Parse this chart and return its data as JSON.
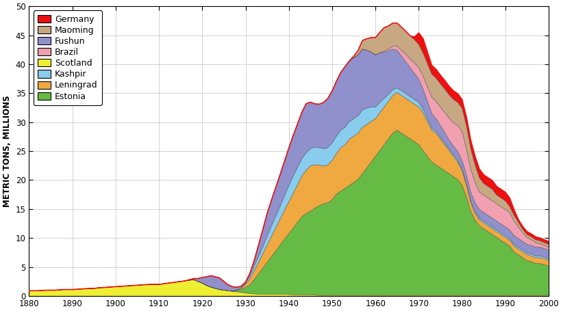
{
  "title": "",
  "ylabel": "METRIC TONS, MILLIONS",
  "xlabel": "",
  "xlim": [
    1880,
    2000
  ],
  "ylim": [
    0,
    50
  ],
  "yticks": [
    0,
    5,
    10,
    15,
    20,
    25,
    30,
    35,
    40,
    45,
    50
  ],
  "xticks": [
    1880,
    1890,
    1900,
    1910,
    1920,
    1930,
    1940,
    1950,
    1960,
    1970,
    1980,
    1990,
    2000
  ],
  "legend_order": [
    "Germany",
    "Maoming",
    "Fushun",
    "Brazil",
    "Scotland",
    "Kashpir",
    "Leningrad",
    "Estonia"
  ],
  "colors": {
    "Germany": "#ee1111",
    "Maoming": "#c8a882",
    "Fushun": "#9090cc",
    "Brazil": "#f0a0b0",
    "Scotland": "#eeee33",
    "Kashpir": "#88ccee",
    "Leningrad": "#f0a840",
    "Estonia": "#66bb44"
  },
  "stack_order": [
    "Scotland",
    "Estonia",
    "Leningrad",
    "Kashpir",
    "Fushun",
    "Brazil",
    "Maoming",
    "Germany"
  ],
  "years": [
    1880,
    1881,
    1882,
    1883,
    1884,
    1885,
    1886,
    1887,
    1888,
    1889,
    1890,
    1891,
    1892,
    1893,
    1894,
    1895,
    1896,
    1897,
    1898,
    1899,
    1900,
    1901,
    1902,
    1903,
    1904,
    1905,
    1906,
    1907,
    1908,
    1909,
    1910,
    1911,
    1912,
    1913,
    1914,
    1915,
    1916,
    1917,
    1918,
    1919,
    1920,
    1921,
    1922,
    1923,
    1924,
    1925,
    1926,
    1927,
    1928,
    1929,
    1930,
    1931,
    1932,
    1933,
    1934,
    1935,
    1936,
    1937,
    1938,
    1939,
    1940,
    1941,
    1942,
    1943,
    1944,
    1945,
    1946,
    1947,
    1948,
    1949,
    1950,
    1951,
    1952,
    1953,
    1954,
    1955,
    1956,
    1957,
    1958,
    1959,
    1960,
    1961,
    1962,
    1963,
    1964,
    1965,
    1966,
    1967,
    1968,
    1969,
    1970,
    1971,
    1972,
    1973,
    1974,
    1975,
    1976,
    1977,
    1978,
    1979,
    1980,
    1981,
    1982,
    1983,
    1984,
    1985,
    1986,
    1987,
    1988,
    1989,
    1990,
    1991,
    1992,
    1993,
    1994,
    1995,
    1996,
    1997,
    1998,
    1999,
    2000
  ],
  "data": {
    "Scotland": [
      0.9,
      0.9,
      0.9,
      0.95,
      1.0,
      1.0,
      1.0,
      1.05,
      1.1,
      1.1,
      1.1,
      1.15,
      1.2,
      1.25,
      1.3,
      1.3,
      1.4,
      1.45,
      1.5,
      1.55,
      1.6,
      1.65,
      1.7,
      1.75,
      1.8,
      1.85,
      1.9,
      1.95,
      2.0,
      2.0,
      2.0,
      2.1,
      2.2,
      2.3,
      2.4,
      2.5,
      2.6,
      2.7,
      2.8,
      2.5,
      2.2,
      1.8,
      1.5,
      1.3,
      1.1,
      1.0,
      0.9,
      0.8,
      0.7,
      0.6,
      0.5,
      0.4,
      0.35,
      0.3,
      0.3,
      0.3,
      0.3,
      0.3,
      0.3,
      0.3,
      0.25,
      0.2,
      0.2,
      0.2,
      0.2,
      0.15,
      0.15,
      0.1,
      0.1,
      0.1,
      0.1,
      0.1,
      0.1,
      0.1,
      0.1,
      0.1,
      0.1,
      0.1,
      0.1,
      0.1,
      0.1,
      0.1,
      0.1,
      0.1,
      0.1,
      0.1,
      0.1,
      0.1,
      0.1,
      0.1,
      0.1,
      0.1,
      0.1,
      0.1,
      0.1,
      0.1,
      0.1,
      0.1,
      0.1,
      0.1,
      0.1,
      0.1,
      0.1,
      0.1,
      0.1,
      0.1,
      0.1,
      0.1,
      0.1,
      0.1,
      0.1,
      0.1,
      0.1,
      0.1,
      0.1,
      0.1,
      0.1,
      0.1,
      0.1,
      0.1,
      0.1
    ],
    "Estonia": [
      0.0,
      0.0,
      0.0,
      0.0,
      0.0,
      0.0,
      0.0,
      0.0,
      0.0,
      0.0,
      0.0,
      0.0,
      0.0,
      0.0,
      0.0,
      0.0,
      0.0,
      0.0,
      0.0,
      0.0,
      0.0,
      0.0,
      0.0,
      0.0,
      0.0,
      0.0,
      0.0,
      0.0,
      0.0,
      0.0,
      0.0,
      0.0,
      0.0,
      0.0,
      0.0,
      0.0,
      0.0,
      0.0,
      0.0,
      0.0,
      0.0,
      0.0,
      0.0,
      0.0,
      0.0,
      0.0,
      0.0,
      0.0,
      0.2,
      0.5,
      1.0,
      1.5,
      2.5,
      3.5,
      4.5,
      5.5,
      6.5,
      7.5,
      8.5,
      9.5,
      10.5,
      11.5,
      12.5,
      13.5,
      14.0,
      14.5,
      15.0,
      15.5,
      15.8,
      16.0,
      16.5,
      17.5,
      18.0,
      18.5,
      19.0,
      19.5,
      20.0,
      21.0,
      22.0,
      23.0,
      24.0,
      25.0,
      26.0,
      27.0,
      28.0,
      28.5,
      28.0,
      27.5,
      27.0,
      26.5,
      26.0,
      25.0,
      24.0,
      23.0,
      22.5,
      22.0,
      21.5,
      21.0,
      20.5,
      20.0,
      19.0,
      17.0,
      14.5,
      13.0,
      12.0,
      11.5,
      11.0,
      10.5,
      10.0,
      9.5,
      9.0,
      8.5,
      7.5,
      7.0,
      6.5,
      6.0,
      5.8,
      5.5,
      5.5,
      5.3,
      5.0
    ],
    "Leningrad": [
      0.0,
      0.0,
      0.0,
      0.0,
      0.0,
      0.0,
      0.0,
      0.0,
      0.0,
      0.0,
      0.0,
      0.0,
      0.0,
      0.0,
      0.0,
      0.0,
      0.0,
      0.0,
      0.0,
      0.0,
      0.0,
      0.0,
      0.0,
      0.0,
      0.0,
      0.0,
      0.0,
      0.0,
      0.0,
      0.0,
      0.0,
      0.0,
      0.0,
      0.0,
      0.0,
      0.0,
      0.0,
      0.0,
      0.0,
      0.0,
      0.0,
      0.0,
      0.0,
      0.0,
      0.0,
      0.0,
      0.0,
      0.0,
      0.1,
      0.2,
      0.5,
      1.0,
      1.5,
      2.0,
      2.5,
      3.0,
      3.5,
      4.0,
      4.5,
      5.0,
      5.5,
      6.0,
      6.5,
      7.0,
      7.5,
      7.8,
      7.5,
      7.0,
      6.5,
      6.5,
      6.8,
      7.0,
      7.5,
      7.5,
      8.0,
      8.0,
      8.0,
      8.0,
      7.5,
      7.0,
      6.5,
      6.5,
      6.5,
      6.5,
      6.5,
      6.5,
      6.5,
      6.5,
      6.5,
      6.5,
      6.5,
      6.5,
      6.0,
      5.5,
      5.5,
      5.0,
      4.5,
      4.0,
      3.5,
      3.0,
      2.5,
      2.0,
      1.5,
      1.2,
      1.0,
      1.0,
      1.0,
      1.0,
      1.0,
      1.0,
      1.0,
      1.0,
      1.0,
      1.0,
      1.0,
      1.0,
      1.0,
      1.0,
      1.0,
      1.0,
      1.0
    ],
    "Kashpir": [
      0.0,
      0.0,
      0.0,
      0.0,
      0.0,
      0.0,
      0.0,
      0.0,
      0.0,
      0.0,
      0.0,
      0.0,
      0.0,
      0.0,
      0.0,
      0.0,
      0.0,
      0.0,
      0.0,
      0.0,
      0.0,
      0.0,
      0.0,
      0.0,
      0.0,
      0.0,
      0.0,
      0.0,
      0.0,
      0.0,
      0.0,
      0.0,
      0.0,
      0.0,
      0.0,
      0.0,
      0.0,
      0.0,
      0.0,
      0.0,
      0.0,
      0.0,
      0.0,
      0.0,
      0.0,
      0.0,
      0.0,
      0.0,
      0.0,
      0.1,
      0.2,
      0.5,
      0.8,
      1.0,
      1.2,
      1.5,
      1.8,
      2.0,
      2.2,
      2.5,
      2.8,
      3.0,
      3.0,
      3.0,
      3.0,
      3.0,
      3.0,
      3.0,
      3.0,
      3.0,
      3.0,
      3.0,
      3.0,
      3.0,
      3.0,
      3.0,
      3.0,
      3.0,
      2.8,
      2.5,
      2.0,
      1.8,
      1.5,
      1.2,
      1.0,
      0.8,
      0.8,
      0.8,
      0.8,
      0.8,
      0.8,
      0.6,
      0.5,
      0.4,
      0.3,
      0.3,
      0.3,
      0.3,
      0.3,
      0.3,
      0.3,
      0.3,
      0.3,
      0.3,
      0.3,
      0.3,
      0.3,
      0.3,
      0.3,
      0.3,
      0.3,
      0.3,
      0.3,
      0.3,
      0.3,
      0.3,
      0.3,
      0.3,
      0.3,
      0.3,
      0.3
    ],
    "Fushun": [
      0.0,
      0.0,
      0.0,
      0.0,
      0.0,
      0.0,
      0.0,
      0.0,
      0.0,
      0.0,
      0.0,
      0.0,
      0.0,
      0.0,
      0.0,
      0.0,
      0.0,
      0.0,
      0.0,
      0.0,
      0.0,
      0.0,
      0.0,
      0.0,
      0.0,
      0.0,
      0.0,
      0.0,
      0.0,
      0.0,
      0.0,
      0.0,
      0.0,
      0.0,
      0.0,
      0.0,
      0.0,
      0.1,
      0.2,
      0.5,
      1.0,
      1.5,
      2.0,
      2.0,
      2.0,
      1.5,
      1.0,
      0.8,
      0.5,
      0.3,
      0.2,
      0.5,
      1.0,
      2.0,
      3.0,
      4.0,
      4.5,
      5.0,
      5.5,
      6.0,
      6.5,
      7.0,
      7.5,
      8.0,
      8.5,
      8.0,
      7.5,
      7.5,
      8.0,
      8.5,
      9.0,
      9.5,
      10.0,
      10.5,
      10.5,
      10.5,
      10.5,
      10.5,
      10.0,
      9.5,
      9.0,
      8.5,
      8.0,
      7.5,
      7.0,
      6.5,
      6.0,
      5.5,
      5.0,
      4.5,
      4.0,
      3.5,
      3.0,
      2.5,
      2.2,
      2.0,
      1.8,
      1.5,
      1.5,
      1.5,
      1.5,
      1.5,
      1.5,
      1.5,
      1.5,
      1.5,
      1.5,
      1.5,
      1.5,
      1.5,
      1.5,
      1.5,
      1.5,
      1.5,
      1.5,
      1.5,
      1.5,
      1.5,
      1.5,
      1.5,
      1.5
    ],
    "Brazil": [
      0.0,
      0.0,
      0.0,
      0.0,
      0.0,
      0.0,
      0.0,
      0.0,
      0.0,
      0.0,
      0.0,
      0.0,
      0.0,
      0.0,
      0.0,
      0.0,
      0.0,
      0.0,
      0.0,
      0.0,
      0.0,
      0.0,
      0.0,
      0.0,
      0.0,
      0.0,
      0.0,
      0.0,
      0.0,
      0.0,
      0.0,
      0.0,
      0.0,
      0.0,
      0.0,
      0.0,
      0.0,
      0.0,
      0.0,
      0.0,
      0.0,
      0.0,
      0.0,
      0.0,
      0.0,
      0.0,
      0.0,
      0.0,
      0.0,
      0.0,
      0.0,
      0.0,
      0.0,
      0.0,
      0.0,
      0.0,
      0.0,
      0.0,
      0.0,
      0.0,
      0.0,
      0.0,
      0.0,
      0.0,
      0.0,
      0.0,
      0.0,
      0.0,
      0.0,
      0.0,
      0.0,
      0.0,
      0.0,
      0.0,
      0.0,
      0.0,
      0.0,
      0.0,
      0.0,
      0.0,
      0.0,
      0.1,
      0.2,
      0.3,
      0.5,
      0.7,
      1.0,
      1.3,
      1.5,
      1.8,
      2.0,
      2.2,
      2.5,
      2.8,
      3.0,
      3.2,
      3.5,
      3.8,
      4.0,
      4.5,
      5.0,
      4.5,
      4.0,
      3.5,
      3.0,
      3.0,
      3.0,
      3.0,
      3.0,
      3.0,
      3.0,
      3.0,
      2.5,
      2.0,
      1.5,
      1.2,
      1.0,
      0.8,
      0.6,
      0.5,
      0.5
    ],
    "Maoming": [
      0.0,
      0.0,
      0.0,
      0.0,
      0.0,
      0.0,
      0.0,
      0.0,
      0.0,
      0.0,
      0.0,
      0.0,
      0.0,
      0.0,
      0.0,
      0.0,
      0.0,
      0.0,
      0.0,
      0.0,
      0.0,
      0.0,
      0.0,
      0.0,
      0.0,
      0.0,
      0.0,
      0.0,
      0.0,
      0.0,
      0.0,
      0.0,
      0.0,
      0.0,
      0.0,
      0.0,
      0.0,
      0.0,
      0.0,
      0.0,
      0.0,
      0.0,
      0.0,
      0.0,
      0.0,
      0.0,
      0.0,
      0.0,
      0.0,
      0.0,
      0.0,
      0.0,
      0.0,
      0.0,
      0.0,
      0.0,
      0.0,
      0.0,
      0.0,
      0.0,
      0.0,
      0.0,
      0.0,
      0.0,
      0.0,
      0.0,
      0.0,
      0.0,
      0.0,
      0.0,
      0.0,
      0.0,
      0.0,
      0.0,
      0.0,
      0.3,
      0.8,
      1.5,
      2.0,
      2.5,
      3.0,
      3.5,
      4.0,
      4.0,
      4.0,
      4.0,
      4.0,
      4.0,
      4.0,
      4.0,
      4.0,
      4.0,
      4.0,
      4.0,
      4.0,
      4.0,
      4.0,
      4.0,
      4.0,
      4.0,
      4.0,
      4.0,
      3.5,
      3.0,
      2.5,
      2.0,
      2.0,
      2.0,
      1.5,
      1.5,
      1.5,
      1.0,
      1.0,
      0.8,
      0.6,
      0.5,
      0.5,
      0.5,
      0.5,
      0.5,
      0.5
    ],
    "Germany": [
      0.0,
      0.0,
      0.0,
      0.0,
      0.0,
      0.0,
      0.0,
      0.0,
      0.0,
      0.0,
      0.0,
      0.0,
      0.0,
      0.0,
      0.0,
      0.0,
      0.0,
      0.0,
      0.0,
      0.0,
      0.0,
      0.0,
      0.0,
      0.0,
      0.0,
      0.0,
      0.0,
      0.0,
      0.0,
      0.0,
      0.0,
      0.0,
      0.0,
      0.0,
      0.0,
      0.0,
      0.0,
      0.0,
      0.0,
      0.0,
      0.0,
      0.0,
      0.0,
      0.0,
      0.0,
      0.0,
      0.0,
      0.0,
      0.0,
      0.0,
      0.0,
      0.0,
      0.0,
      0.0,
      0.0,
      0.0,
      0.0,
      0.0,
      0.0,
      0.0,
      0.0,
      0.0,
      0.0,
      0.0,
      0.0,
      0.0,
      0.0,
      0.0,
      0.0,
      0.0,
      0.0,
      0.0,
      0.0,
      0.0,
      0.0,
      0.0,
      0.0,
      0.0,
      0.0,
      0.0,
      0.0,
      0.0,
      0.0,
      0.0,
      0.0,
      0.0,
      0.0,
      0.0,
      0.0,
      0.5,
      2.0,
      2.5,
      2.0,
      1.5,
      1.5,
      1.5,
      1.5,
      1.5,
      1.5,
      1.5,
      1.5,
      1.5,
      1.5,
      1.5,
      1.5,
      1.5,
      1.5,
      1.5,
      1.5,
      1.5,
      1.5,
      1.5,
      1.0,
      0.5,
      0.5,
      0.5,
      0.5,
      0.5,
      0.5,
      0.5,
      0.5
    ]
  }
}
